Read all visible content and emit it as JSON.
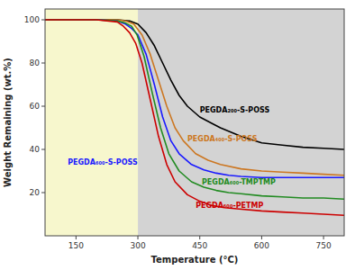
{
  "chart_data": {
    "type": "line",
    "xlabel": "Temperature (°C)",
    "ylabel": "Weight Remaining (wt.%)",
    "xlim": [
      75,
      800
    ],
    "ylim": [
      0,
      105
    ],
    "xticks": [
      150,
      300,
      450,
      600,
      750
    ],
    "yticks": [
      20,
      40,
      60,
      80,
      100
    ],
    "regions": [
      {
        "range": [
          300,
          800
        ],
        "color": "#c8c8c8"
      },
      {
        "range": [
          75,
          300
        ],
        "color": "#f5f5c0"
      }
    ],
    "series": [
      {
        "color": "#000000",
        "x": [
          75,
          100,
          150,
          200,
          250,
          280,
          300,
          320,
          340,
          360,
          380,
          400,
          420,
          450,
          480,
          500,
          550,
          600,
          650,
          700,
          750,
          800
        ],
        "values": [
          100,
          100,
          100,
          100,
          100,
          99.5,
          98,
          94,
          88,
          80,
          72,
          65,
          60,
          55,
          52,
          50,
          46,
          43,
          42,
          41,
          40.5,
          40
        ]
      },
      {
        "color": "#cc7722",
        "x": [
          75,
          100,
          150,
          200,
          250,
          270,
          290,
          310,
          330,
          350,
          370,
          390,
          410,
          440,
          470,
          500,
          550,
          600,
          650,
          700,
          750,
          800
        ],
        "values": [
          100,
          100,
          100,
          100,
          100,
          99.5,
          98,
          93,
          84,
          72,
          60,
          50,
          44,
          38,
          35,
          33,
          31,
          30,
          29.5,
          29,
          28.5,
          28
        ]
      },
      {
        "color": "#1a1aff",
        "x": [
          75,
          100,
          150,
          200,
          250,
          270,
          285,
          300,
          320,
          340,
          360,
          380,
          400,
          430,
          460,
          490,
          520,
          550,
          600,
          650,
          700,
          750,
          800
        ],
        "values": [
          100,
          100,
          100,
          100,
          99.5,
          98,
          96,
          93,
          84,
          70,
          55,
          44,
          38,
          33,
          30.5,
          29,
          28,
          27.5,
          27,
          27,
          27,
          27,
          27
        ]
      },
      {
        "color": "#228B22",
        "x": [
          75,
          100,
          150,
          200,
          250,
          270,
          285,
          298,
          315,
          335,
          355,
          375,
          400,
          430,
          460,
          490,
          520,
          550,
          600,
          650,
          700,
          750,
          800
        ],
        "values": [
          100,
          100,
          100,
          100,
          99.5,
          98.5,
          97,
          93,
          83,
          66,
          50,
          38,
          30,
          25,
          22.5,
          21,
          20,
          19.5,
          18.5,
          18,
          17.5,
          17.5,
          17
        ]
      },
      {
        "color": "#cc0000",
        "x": [
          75,
          100,
          150,
          200,
          250,
          265,
          280,
          295,
          310,
          330,
          350,
          370,
          390,
          420,
          450,
          480,
          510,
          540,
          600,
          650,
          700,
          750,
          800
        ],
        "values": [
          100,
          100,
          100,
          100,
          99,
          97,
          94,
          89,
          80,
          63,
          46,
          33,
          25,
          19,
          16,
          14,
          13,
          12.5,
          11.5,
          11,
          10.5,
          10,
          9.5
        ]
      }
    ],
    "annotations": [
      {
        "text": "PEGDA₂₀₀-S-POSS",
        "x": 450,
        "y": 58,
        "color": "#000000"
      },
      {
        "text": "PEGDA₄₀₀-S-POSS",
        "x": 420,
        "y": 45,
        "color": "#cc7722"
      },
      {
        "text": "PEGDA₆₀₀-S-POSS",
        "x": 130,
        "y": 34,
        "color": "#1a1aff"
      },
      {
        "text": "PEGDA₆₀₀-TMPTMP",
        "x": 455,
        "y": 25,
        "color": "#228B22"
      },
      {
        "text": "PEGDA₆₀₀-PETMP",
        "x": 440,
        "y": 14,
        "color": "#cc0000"
      }
    ]
  }
}
